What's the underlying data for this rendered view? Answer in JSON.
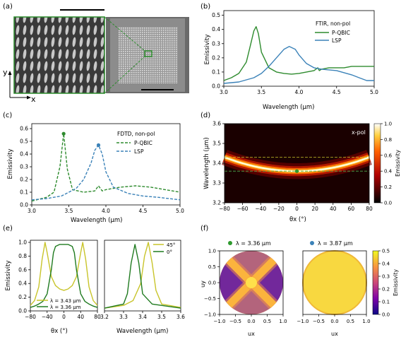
{
  "panels": {
    "a": {
      "letter": "(a)",
      "axis_y": "y",
      "axis_x": "x"
    },
    "b": {
      "letter": "(b)",
      "legend_title": "FTIR, non-pol",
      "ylabel": "Emissivity",
      "xlabel": "Wavelength (μm)",
      "xticks": [
        "3.0",
        "3.5",
        "4.0",
        "4.5",
        "5.0"
      ],
      "yticks": [
        "0.0",
        "0.1",
        "0.2",
        "0.3",
        "0.4",
        "0.5"
      ]
    },
    "c": {
      "letter": "(c)",
      "legend_title": "FDTD, non-pol",
      "ylabel": "Emissivity",
      "xlabel": "Wavelength (μm)",
      "xticks": [
        "3.0",
        "3.5",
        "4.0",
        "4.5",
        "5.0"
      ],
      "yticks": [
        "0.0",
        "0.1",
        "0.2",
        "0.3",
        "0.4",
        "0.5",
        "0.6"
      ]
    },
    "d": {
      "letter": "(d)",
      "annotation": "x-pol",
      "ylabel": "Wavelength (μm)",
      "xlabel": "θx (°)",
      "xticks": [
        "−80",
        "−60",
        "−40",
        "−20",
        "0",
        "20",
        "40",
        "60",
        "80"
      ],
      "yticks": [
        "3.2",
        "3.3",
        "3.4",
        "3.5",
        "3.6"
      ],
      "cbar_label": "Emissivity",
      "cbar_ticks": [
        "0.0",
        "0.2",
        "0.4",
        "0.6",
        "0.8",
        "1.0"
      ]
    },
    "e": {
      "letter": "(e)",
      "ylabel": "Emissivity",
      "xlabel_left": "θx (°)",
      "xlabel_right": "Wavelength (μm)",
      "xticks_left": [
        "−80",
        "−40",
        "0",
        "40",
        "80"
      ],
      "xticks_right": [
        "3.2",
        "3.3",
        "3.4",
        "3.5",
        "3.6"
      ],
      "yticks": [
        "0.0",
        "0.2",
        "0.4",
        "0.6",
        "0.8",
        "1.0"
      ],
      "legend_left": [
        "λ = 3.43 μm",
        "λ = 3.36 μm"
      ],
      "legend_right": [
        "45°",
        "0°"
      ]
    },
    "f": {
      "letter": "(f)",
      "title_left": "λ = 3.36 μm",
      "title_right": "λ = 3.87 μm",
      "ylabel": "uy",
      "xlabel": "ux",
      "ticks": [
        "−1.0",
        "−0.5",
        "0.0",
        "0.5",
        "1.0"
      ],
      "cbar_label": "Emissivity",
      "cbar_ticks": [
        "0.0",
        "0.1",
        "0.2",
        "0.3",
        "0.4",
        "0.5"
      ]
    }
  },
  "colors": {
    "pqbic": "#2e8b2e",
    "lsp": "#3b82b8",
    "yellow": "#c8c42a",
    "green_dark": "#1f7a1f"
  },
  "chart_data": [
    {
      "panel": "b",
      "type": "line",
      "xlim": [
        3.0,
        5.0
      ],
      "ylim": [
        0.0,
        0.55
      ],
      "series": [
        {
          "name": "P-QBIC",
          "x": [
            3.0,
            3.1,
            3.2,
            3.3,
            3.35,
            3.4,
            3.43,
            3.46,
            3.5,
            3.6,
            3.7,
            3.8,
            3.9,
            4.0,
            4.1,
            4.2,
            4.25,
            4.27,
            4.3,
            4.4,
            4.5,
            4.6,
            4.7,
            4.8,
            4.9,
            5.0
          ],
          "y": [
            0.04,
            0.06,
            0.09,
            0.17,
            0.28,
            0.39,
            0.42,
            0.37,
            0.24,
            0.13,
            0.1,
            0.09,
            0.085,
            0.09,
            0.1,
            0.11,
            0.13,
            0.11,
            0.12,
            0.13,
            0.13,
            0.13,
            0.14,
            0.14,
            0.14,
            0.14
          ]
        },
        {
          "name": "LSP",
          "x": [
            3.0,
            3.2,
            3.4,
            3.5,
            3.6,
            3.7,
            3.8,
            3.87,
            3.95,
            4.0,
            4.1,
            4.2,
            4.3,
            4.5,
            4.7,
            4.8,
            4.9,
            5.0
          ],
          "y": [
            0.02,
            0.03,
            0.06,
            0.09,
            0.14,
            0.2,
            0.26,
            0.28,
            0.26,
            0.22,
            0.16,
            0.13,
            0.12,
            0.11,
            0.08,
            0.06,
            0.04,
            0.04
          ]
        }
      ]
    },
    {
      "panel": "c",
      "type": "line",
      "xlim": [
        3.0,
        5.0
      ],
      "ylim": [
        0.0,
        0.65
      ],
      "series": [
        {
          "name": "P-QBIC",
          "x": [
            3.0,
            3.2,
            3.3,
            3.38,
            3.43,
            3.48,
            3.55,
            3.7,
            3.85,
            3.9,
            3.95,
            4.0,
            4.2,
            4.4,
            4.6,
            4.8,
            5.0
          ],
          "y": [
            0.03,
            0.06,
            0.1,
            0.3,
            0.56,
            0.28,
            0.12,
            0.1,
            0.11,
            0.15,
            0.11,
            0.12,
            0.14,
            0.15,
            0.14,
            0.12,
            0.1
          ]
        },
        {
          "name": "LSP",
          "x": [
            3.0,
            3.2,
            3.4,
            3.6,
            3.7,
            3.8,
            3.85,
            3.9,
            3.95,
            4.0,
            4.1,
            4.3,
            4.5,
            4.7,
            5.0
          ],
          "y": [
            0.04,
            0.05,
            0.07,
            0.13,
            0.2,
            0.33,
            0.43,
            0.47,
            0.4,
            0.26,
            0.14,
            0.09,
            0.07,
            0.06,
            0.04
          ]
        }
      ],
      "markers": [
        {
          "series": "P-QBIC",
          "x": 3.43,
          "y": 0.56
        },
        {
          "series": "LSP",
          "x": 3.9,
          "y": 0.47
        }
      ]
    },
    {
      "panel": "d",
      "type": "heatmap",
      "xlim": [
        -80,
        80
      ],
      "ylim": [
        3.2,
        3.6
      ],
      "zlim": [
        0.0,
        1.0
      ],
      "band": {
        "center_wavelength": 3.36,
        "curvature_per_deg2": 1.1e-05,
        "width": 0.025
      },
      "reference_lines": [
        3.43,
        3.36
      ],
      "marker": {
        "x": 0,
        "y": 3.36
      }
    },
    {
      "panel": "e-left",
      "type": "line",
      "xlim": [
        -80,
        80
      ],
      "ylim": [
        0.0,
        1.05
      ],
      "series": [
        {
          "name": "λ = 3.43 μm",
          "x": [
            -80,
            -70,
            -60,
            -52,
            -45,
            -40,
            -30,
            -20,
            -10,
            0,
            10,
            20,
            30,
            40,
            45,
            52,
            60,
            70,
            80
          ],
          "y": [
            0.08,
            0.15,
            0.35,
            0.75,
            1.0,
            0.85,
            0.5,
            0.37,
            0.32,
            0.3,
            0.32,
            0.37,
            0.5,
            0.85,
            1.0,
            0.75,
            0.35,
            0.15,
            0.08
          ]
        },
        {
          "name": "λ = 3.36 μm",
          "x": [
            -80,
            -70,
            -60,
            -50,
            -40,
            -30,
            -25,
            -20,
            -10,
            0,
            10,
            20,
            25,
            30,
            40,
            50,
            60,
            70,
            80
          ],
          "y": [
            0.05,
            0.07,
            0.1,
            0.14,
            0.25,
            0.6,
            0.85,
            0.94,
            0.97,
            0.97,
            0.97,
            0.94,
            0.85,
            0.6,
            0.25,
            0.14,
            0.1,
            0.07,
            0.05
          ]
        }
      ]
    },
    {
      "panel": "e-right",
      "type": "line",
      "xlim": [
        3.2,
        3.6
      ],
      "ylim": [
        0.0,
        1.05
      ],
      "series": [
        {
          "name": "45°",
          "x": [
            3.2,
            3.3,
            3.35,
            3.39,
            3.41,
            3.43,
            3.45,
            3.47,
            3.5,
            3.6
          ],
          "y": [
            0.04,
            0.08,
            0.15,
            0.4,
            0.8,
            1.0,
            0.7,
            0.3,
            0.1,
            0.05
          ]
        },
        {
          "name": "0°",
          "x": [
            3.2,
            3.3,
            3.32,
            3.34,
            3.36,
            3.38,
            3.4,
            3.45,
            3.6
          ],
          "y": [
            0.04,
            0.1,
            0.25,
            0.7,
            0.97,
            0.7,
            0.25,
            0.1,
            0.04
          ]
        }
      ]
    },
    {
      "panel": "f",
      "type": "heatmap",
      "xlim": [
        -1.0,
        1.0
      ],
      "ylim": [
        -1.0,
        1.0
      ],
      "zlim": [
        0.0,
        0.5
      ],
      "maps": [
        {
          "wavelength": 3.36,
          "pattern": "x-shaped high emissivity along diagonals, low at center of edges"
        },
        {
          "wavelength": 3.87,
          "pattern": "nearly uniform high emissivity"
        }
      ]
    }
  ]
}
